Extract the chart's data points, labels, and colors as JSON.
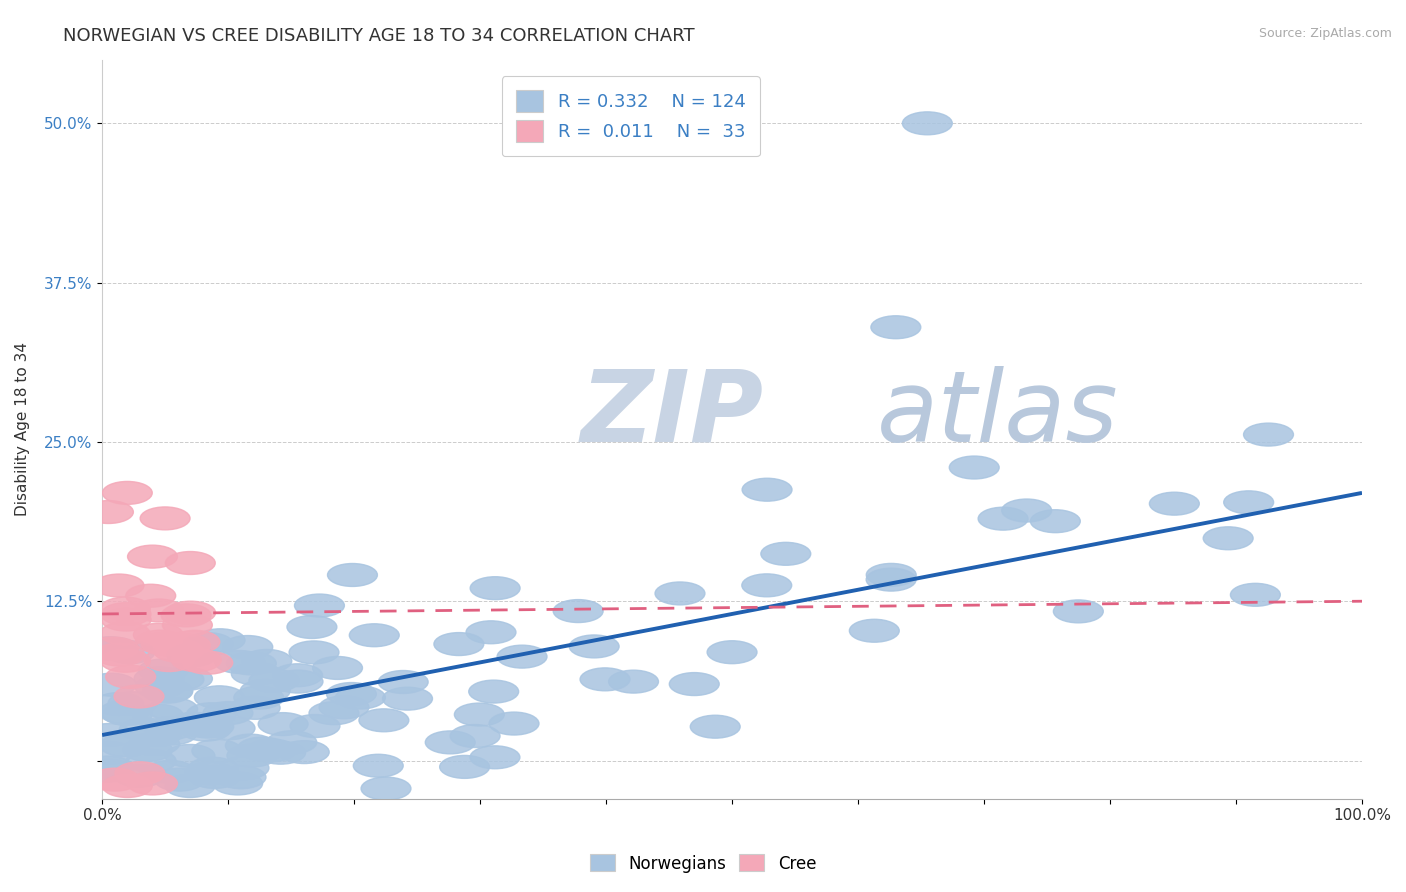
{
  "title": "NORWEGIAN VS CREE DISABILITY AGE 18 TO 34 CORRELATION CHART",
  "source": "Source: ZipAtlas.com",
  "ylabel": "Disability Age 18 to 34",
  "xlim": [
    0.0,
    1.0
  ],
  "ylim": [
    -0.03,
    0.55
  ],
  "x_ticks": [
    0.0,
    0.1,
    0.2,
    0.3,
    0.4,
    0.5,
    0.6,
    0.7,
    0.8,
    0.9,
    1.0
  ],
  "x_tick_labels": [
    "0.0%",
    "",
    "",
    "",
    "",
    "",
    "",
    "",
    "",
    "",
    "100.0%"
  ],
  "y_ticks": [
    0.0,
    0.125,
    0.25,
    0.375,
    0.5
  ],
  "y_tick_labels": [
    "",
    "12.5%",
    "25.0%",
    "37.5%",
    "50.0%"
  ],
  "norwegian_R": 0.332,
  "norwegian_N": 124,
  "cree_R": 0.011,
  "cree_N": 33,
  "norwegian_color": "#a8c4e0",
  "cree_color": "#f4a8b8",
  "norwegian_line_color": "#2060b0",
  "cree_line_color": "#e06080",
  "watermark_zip_color": "#c8d4e8",
  "watermark_atlas_color": "#b0c4dc",
  "background_color": "#ffffff",
  "title_fontsize": 13,
  "axis_label_fontsize": 11,
  "tick_fontsize": 11,
  "nor_line_x0": 0.0,
  "nor_line_y0": 0.02,
  "nor_line_x1": 1.0,
  "nor_line_y1": 0.21,
  "cree_line_x0": 0.0,
  "cree_line_y0": 0.115,
  "cree_line_x1": 1.0,
  "cree_line_y1": 0.125
}
